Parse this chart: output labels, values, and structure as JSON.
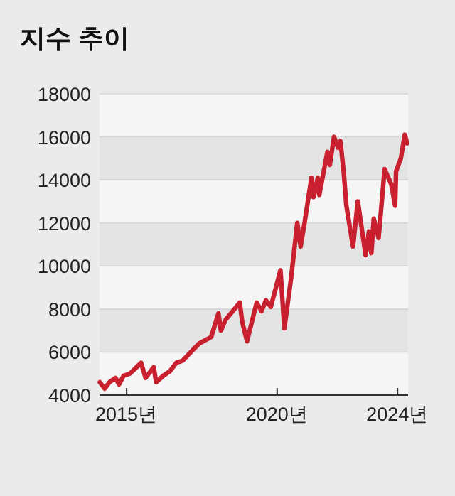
{
  "chart_data": {
    "type": "line",
    "title": "지수 추이",
    "x": [
      2014.11,
      2014.27,
      2014.43,
      2014.63,
      2014.75,
      2014.9,
      2015.11,
      2015.48,
      2015.63,
      2015.9,
      2015.98,
      2016.22,
      2016.43,
      2016.65,
      2016.86,
      2017.41,
      2017.81,
      2018.05,
      2018.13,
      2018.29,
      2018.76,
      2018.84,
      2019.0,
      2019.32,
      2019.48,
      2019.63,
      2019.79,
      2020.11,
      2020.24,
      2020.46,
      2020.67,
      2020.78,
      2020.9,
      2021.14,
      2021.21,
      2021.35,
      2021.4,
      2021.67,
      2021.75,
      2021.89,
      2022.02,
      2022.1,
      2022.21,
      2022.3,
      2022.52,
      2022.68,
      2022.94,
      2023.05,
      2023.13,
      2023.21,
      2023.37,
      2023.44,
      2023.57,
      2023.79,
      2023.92,
      2023.95,
      2024.11,
      2024.24,
      2024.32
    ],
    "series": [
      {
        "color": "#c8202f",
        "values": [
          4600,
          4300,
          4600,
          4800,
          4500,
          4900,
          5000,
          5500,
          4800,
          5300,
          4600,
          4900,
          5100,
          5500,
          5600,
          6400,
          6700,
          7800,
          7000,
          7500,
          8300,
          7400,
          6500,
          8300,
          7900,
          8400,
          8100,
          9800,
          7100,
          9400,
          12000,
          10900,
          11900,
          14100,
          13200,
          14100,
          13300,
          15300,
          14700,
          16000,
          15500,
          15800,
          14400,
          12800,
          10900,
          13000,
          10500,
          11600,
          10600,
          12200,
          11300,
          12400,
          14500,
          13800,
          12800,
          14400,
          15000,
          16100,
          15700
        ]
      }
    ],
    "xlim": [
      2014.1,
      2024.35
    ],
    "xticks": [
      {
        "value": 2015,
        "label": "2015년"
      },
      {
        "value": 2020,
        "label": "2020년"
      },
      {
        "value": 2024,
        "label": "2024년"
      }
    ],
    "ylim": [
      4000,
      18000
    ],
    "yticks": [
      4000,
      6000,
      8000,
      10000,
      12000,
      14000,
      16000,
      18000
    ],
    "grid": "y",
    "line_style": "solid",
    "marker": "none"
  }
}
